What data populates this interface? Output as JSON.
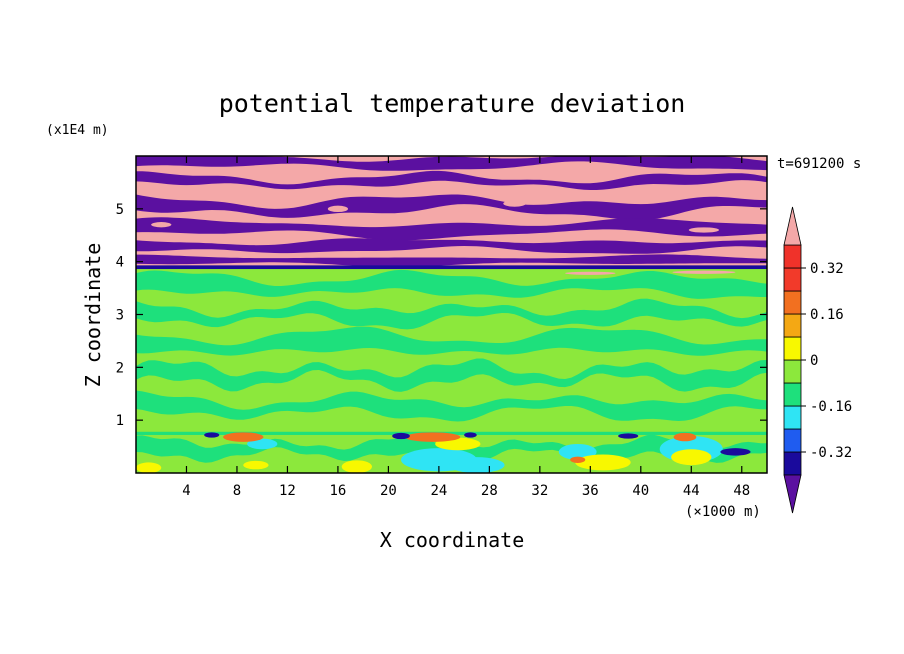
{
  "chart_data": {
    "type": "heatmap",
    "title": "potential temperature deviation",
    "xlabel": "X coordinate",
    "ylabel": "Z coordinate",
    "x_unit": "(×1000 m)",
    "y_unit": "(x1E4 m)",
    "time_label": "t=691200 s",
    "xlim": [
      0,
      50
    ],
    "ylim": [
      0,
      6
    ],
    "x_ticks": [
      4,
      8,
      12,
      16,
      20,
      24,
      28,
      32,
      36,
      40,
      44,
      48
    ],
    "y_ticks": [
      1,
      2,
      3,
      4,
      5
    ],
    "colorbar": {
      "labels": [
        "0.32",
        "0.16",
        "0",
        "-0.16",
        "-0.32"
      ],
      "label_values": [
        0.32,
        0.16,
        0,
        -0.16,
        -0.32
      ],
      "levels": [
        -0.4,
        -0.32,
        -0.24,
        -0.16,
        -0.08,
        0,
        0.08,
        0.16,
        0.24,
        0.32,
        0.4
      ],
      "colors": [
        "#5b10a0",
        "#1a0a9c",
        "#1f5cf0",
        "#2fe4f4",
        "#1ee07c",
        "#8ce83c",
        "#f8f800",
        "#f4a814",
        "#f27020",
        "#f23a2a",
        "#f0322a",
        "#f4a8a8"
      ],
      "extend": "both"
    },
    "regions": {
      "upper_bands": {
        "z_range": [
          3.9,
          6.0
        ],
        "colors": [
          "#f4a8a8",
          "#5b10a0"
        ]
      },
      "middle": {
        "z_range": [
          0.75,
          3.9
        ],
        "colors": [
          "#8ce83c",
          "#1ee07c"
        ]
      },
      "lower": {
        "z_range": [
          0.0,
          0.75
        ],
        "colors": [
          "#8ce83c",
          "#1ee07c",
          "#2fe4f4",
          "#f8f800",
          "#f27020",
          "#1a0a9c"
        ]
      }
    }
  }
}
